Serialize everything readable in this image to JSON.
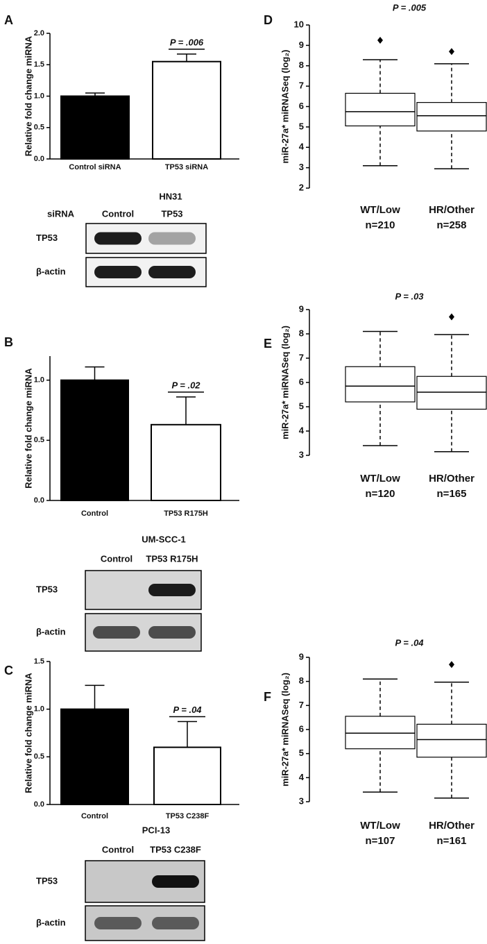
{
  "chart_data": [
    {
      "type": "bar",
      "panel": "A",
      "ylabel": "Relative fold change  miRNA",
      "categories": [
        "Control siRNA",
        "TP53 siRNA"
      ],
      "values": [
        1.0,
        1.55
      ],
      "errors": [
        0.05,
        0.12
      ],
      "colors": [
        "#000000",
        "#ffffff"
      ],
      "ylim": [
        0,
        2
      ],
      "yticks": [
        {
          "value": 0,
          "label": "0.0"
        },
        0.5,
        {
          "value": 1,
          "label": "1.0"
        },
        1.5,
        {
          "value": 2,
          "label": "2.0"
        }
      ],
      "annotation": "P = .006",
      "blot": {
        "title": "HN31",
        "header": "siRNA",
        "lanes": [
          "Control",
          "TP53"
        ],
        "rows": [
          "TP53",
          "β-actin"
        ]
      }
    },
    {
      "type": "bar",
      "panel": "B",
      "ylabel": "Relative fold change  miRNA",
      "categories": [
        "Control",
        "TP53 R175H"
      ],
      "values": [
        1.0,
        0.63
      ],
      "errors": [
        0.11,
        0.23
      ],
      "colors": [
        "#000000",
        "#ffffff"
      ],
      "ylim": [
        0,
        1.2
      ],
      "yticks": [
        {
          "value": 0,
          "label": "0.0"
        },
        0.5,
        {
          "value": 1,
          "label": "1.0"
        }
      ],
      "annotation": "P = .02",
      "blot": {
        "title": "UM-SCC-1",
        "lanes": [
          "Control",
          "TP53 R175H"
        ],
        "rows": [
          "TP53",
          "β-actin"
        ]
      }
    },
    {
      "type": "bar",
      "panel": "C",
      "ylabel": "Relative fold change  miRNA",
      "categories": [
        "Control",
        "TP53 C238F"
      ],
      "values": [
        1.0,
        0.6
      ],
      "errors": [
        0.25,
        0.27
      ],
      "colors": [
        "#000000",
        "#ffffff"
      ],
      "ylim": [
        0,
        1.5
      ],
      "yticks": [
        {
          "value": 0,
          "label": "0.0"
        },
        0.5,
        {
          "value": 1,
          "label": "1.0"
        },
        1.5
      ],
      "annotation": "P = .04",
      "blot": {
        "title": "PCI-13",
        "lanes": [
          "Control",
          "TP53 C238F"
        ],
        "rows": [
          "TP53",
          "β-actin"
        ]
      }
    },
    {
      "type": "box",
      "panel": "D",
      "title": "P = .005",
      "ylabel": "miR-27a* miRNASeq (log₂)",
      "categories": [
        "WT/Low",
        "HR/Other"
      ],
      "n_labels": [
        "n=210",
        "n=258"
      ],
      "boxes": [
        {
          "whislo": 3.1,
          "q1": 5.05,
          "med": 5.75,
          "q3": 6.65,
          "whishi": 8.3,
          "fliers": [
            9.25
          ]
        },
        {
          "whislo": 2.95,
          "q1": 4.8,
          "med": 5.55,
          "q3": 6.2,
          "whishi": 8.1,
          "fliers": [
            8.7
          ]
        }
      ],
      "ylim": [
        2,
        10
      ],
      "yticks": [
        2,
        3,
        4,
        5,
        6,
        7,
        8,
        9,
        10
      ]
    },
    {
      "type": "box",
      "panel": "E",
      "title": "P = .03",
      "ylabel": "miR-27a* miRNASeq (log₂)",
      "categories": [
        "WT/Low",
        "HR/Other"
      ],
      "n_labels": [
        "n=120",
        "n=165"
      ],
      "boxes": [
        {
          "whislo": 3.4,
          "q1": 5.2,
          "med": 5.85,
          "q3": 6.65,
          "whishi": 8.1,
          "fliers": []
        },
        {
          "whislo": 3.15,
          "q1": 4.9,
          "med": 5.6,
          "q3": 6.25,
          "whishi": 7.97,
          "fliers": [
            8.7
          ]
        }
      ],
      "ylim": [
        3,
        9
      ],
      "yticks": [
        3,
        4,
        5,
        6,
        7,
        8,
        9
      ]
    },
    {
      "type": "box",
      "panel": "F",
      "title": "P = .04",
      "ylabel": "miR-27a* miRNASeq (log₂)",
      "categories": [
        "WT/Low",
        "HR/Other"
      ],
      "n_labels": [
        "n=107",
        "n=161"
      ],
      "boxes": [
        {
          "whislo": 3.4,
          "q1": 5.2,
          "med": 5.85,
          "q3": 6.55,
          "whishi": 8.1,
          "fliers": []
        },
        {
          "whislo": 3.15,
          "q1": 4.85,
          "med": 5.58,
          "q3": 6.22,
          "whishi": 7.97,
          "fliers": [
            8.7
          ]
        }
      ],
      "ylim": [
        3,
        9
      ],
      "yticks": [
        3,
        4,
        5,
        6,
        7,
        8,
        9
      ]
    }
  ]
}
